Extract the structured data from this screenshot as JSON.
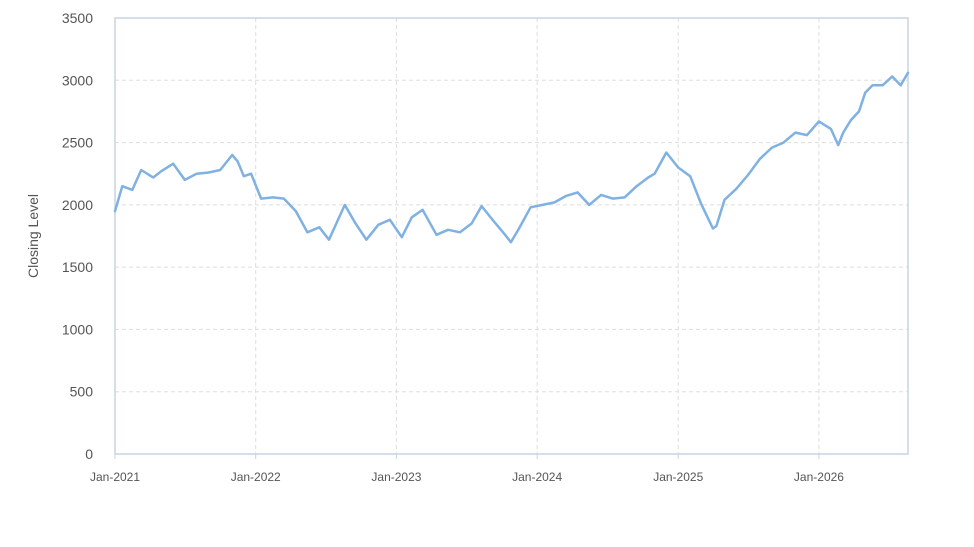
{
  "chart_data": {
    "type": "line",
    "title": "",
    "xlabel": "",
    "ylabel": "Closing Level",
    "ylim": [
      0,
      3500
    ],
    "xlim": [
      "2021-01-01",
      "2026-08-20"
    ],
    "yticks": [
      "0",
      "500",
      "1000",
      "1500",
      "2000",
      "2500",
      "3000",
      "3500"
    ],
    "xticks": [
      {
        "date": "2021-01-01",
        "label": "Jan-2021"
      },
      {
        "date": "2022-01-01",
        "label": "Jan-2022"
      },
      {
        "date": "2023-01-01",
        "label": "Jan-2023"
      },
      {
        "date": "2024-01-01",
        "label": "Jan-2024"
      },
      {
        "date": "2025-01-01",
        "label": "Jan-2025"
      },
      {
        "date": "2026-01-01",
        "label": "Jan-2026"
      }
    ],
    "grid": true,
    "legend": "none",
    "colors": {
      "line": "#7fb1e3",
      "grid": "#dddddd",
      "frame": "#c9d3e3",
      "text": "#555555"
    },
    "series": [
      {
        "x": [
          "2021-01-01",
          "2021-01-20",
          "2021-02-15",
          "2021-03-10",
          "2021-04-10",
          "2021-05-01",
          "2021-06-01",
          "2021-07-01",
          "2021-08-01",
          "2021-09-01",
          "2021-10-01",
          "2021-11-01",
          "2021-11-15",
          "2021-12-01",
          "2021-12-20",
          "2022-01-15",
          "2022-02-15",
          "2022-03-15",
          "2022-04-15",
          "2022-05-15",
          "2022-06-15",
          "2022-07-10",
          "2022-08-01",
          "2022-08-20",
          "2022-09-15",
          "2022-10-15",
          "2022-11-15",
          "2022-12-15",
          "2023-01-15",
          "2023-02-10",
          "2023-03-10",
          "2023-04-15",
          "2023-05-15",
          "2023-06-15",
          "2023-07-15",
          "2023-08-10",
          "2023-09-10",
          "2023-10-10",
          "2023-10-25",
          "2023-11-15",
          "2023-12-15",
          "2024-01-15",
          "2024-02-15",
          "2024-03-15",
          "2024-04-15",
          "2024-05-15",
          "2024-06-15",
          "2024-07-15",
          "2024-08-15",
          "2024-09-15",
          "2024-10-15",
          "2024-11-01",
          "2024-12-01",
          "2025-01-01",
          "2025-02-01",
          "2025-03-01",
          "2025-04-01",
          "2025-04-10",
          "2025-05-01",
          "2025-06-01",
          "2025-07-01",
          "2025-08-01",
          "2025-09-01",
          "2025-10-01",
          "2025-11-01",
          "2025-12-01",
          "2026-01-01",
          "2026-02-01",
          "2026-02-20",
          "2026-03-05",
          "2026-03-25",
          "2026-04-15",
          "2026-05-01",
          "2026-05-20",
          "2026-06-15",
          "2026-07-10",
          "2026-08-01",
          "2026-08-20"
        ],
        "values": [
          1950,
          2150,
          2120,
          2280,
          2220,
          2270,
          2330,
          2200,
          2250,
          2260,
          2280,
          2400,
          2350,
          2230,
          2250,
          2050,
          2060,
          2050,
          1950,
          1780,
          1820,
          1720,
          1870,
          2000,
          1860,
          1720,
          1840,
          1880,
          1740,
          1900,
          1960,
          1760,
          1800,
          1780,
          1850,
          1990,
          1870,
          1760,
          1700,
          1810,
          1980,
          2000,
          2020,
          2070,
          2100,
          2000,
          2080,
          2050,
          2060,
          2150,
          2220,
          2250,
          2420,
          2300,
          2230,
          2010,
          1810,
          1830,
          2040,
          2130,
          2240,
          2370,
          2460,
          2500,
          2580,
          2560,
          2670,
          2610,
          2480,
          2580,
          2680,
          2750,
          2900,
          2960,
          2960,
          3030,
          2960,
          3060
        ]
      }
    ]
  }
}
